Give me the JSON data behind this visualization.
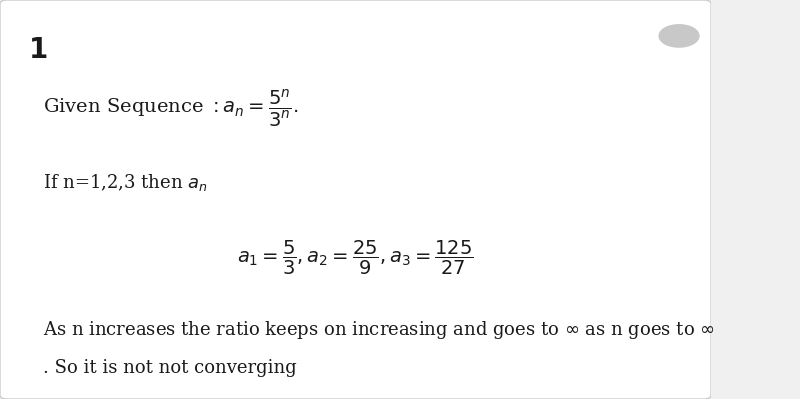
{
  "background_color": "#f0f0f0",
  "card_color": "#ffffff",
  "number_label": "1",
  "number_fontsize": 20,
  "given_sequence_label": "Given Sequence $:a_n = \\dfrac{5^n}{3^n}.$",
  "given_sequence_fontsize": 14,
  "if_n_label": "If n=1,2,3 then $a_n$",
  "if_n_fontsize": 13,
  "sequence_values_latex": "$a_1 = \\dfrac{5}{3}, a_2 = \\dfrac{25}{9}, a_3 = \\dfrac{125}{27}$",
  "sequence_values_fontsize": 14,
  "conclusion_line1": "As n increases the ratio keeps on increasing and goes to $\\infty$ as n goes to $\\infty$",
  "conclusion_line2": ". So it is not not converging",
  "conclusion_fontsize": 13,
  "bubble_color": "#c8c8c8",
  "text_color": "#1a1a1a"
}
